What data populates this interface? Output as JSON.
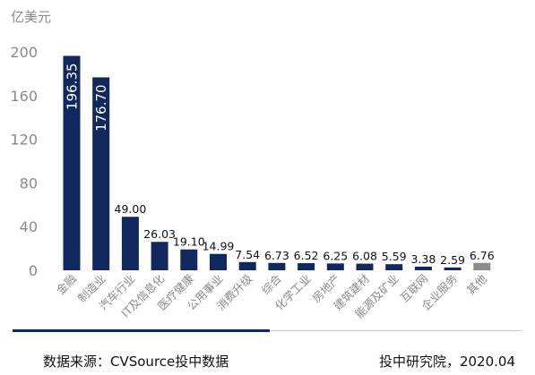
{
  "chart_data": {
    "type": "bar",
    "unit_label": "亿美元",
    "categories": [
      "金融",
      "制造业",
      "汽车行业",
      "IT及信息化",
      "医疗健康",
      "公用事业",
      "消费升级",
      "综合",
      "化学工业",
      "房地产",
      "建筑建材",
      "能源及矿业",
      "互联网",
      "企业服务",
      "其他"
    ],
    "values": [
      196.35,
      176.7,
      49.0,
      26.03,
      19.1,
      14.99,
      7.54,
      6.73,
      6.52,
      6.25,
      6.08,
      5.59,
      3.38,
      2.59,
      6.76
    ],
    "value_labels": [
      "196.35",
      "176.70",
      "49.00",
      "26.03",
      "19.10",
      "14.99",
      "7.54",
      "6.73",
      "6.52",
      "6.25",
      "6.08",
      "5.59",
      "3.38",
      "2.59",
      "6.76"
    ],
    "ylim": [
      0,
      200
    ],
    "yticks": [
      0,
      40,
      80,
      120,
      160,
      200
    ],
    "grid": false,
    "colors": {
      "primary": "#10285e",
      "other": "#8c8c8c",
      "axis_text": "#8a8a8a"
    }
  },
  "footer": {
    "source": "数据来源：CVSource投中数据",
    "credit": "投中研究院，2020.04"
  }
}
